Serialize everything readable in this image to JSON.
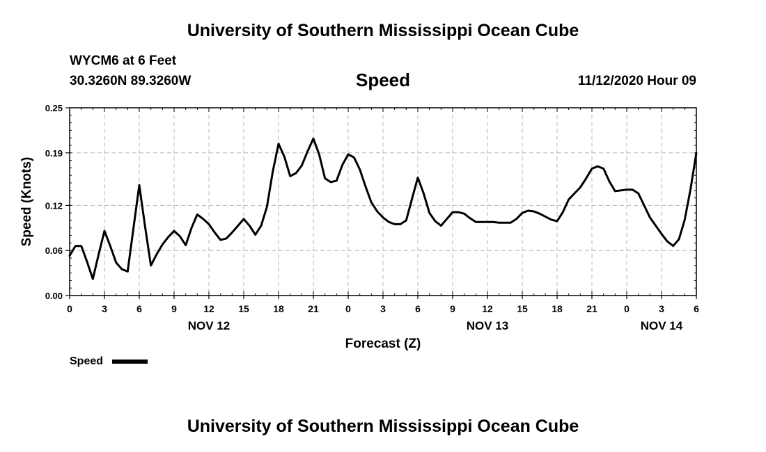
{
  "header": {
    "title": "University of Southern Mississippi Ocean Cube",
    "station": "WYCM6 at 6 Feet",
    "coordinates": "30.3260N 89.3260W",
    "datetime": "11/12/2020 Hour 09",
    "footer_title": "University of Southern Mississippi Ocean Cube"
  },
  "chart_data": {
    "type": "line",
    "title": "Speed",
    "xlabel": "Forecast (Z)",
    "ylabel": "Speed (Knots)",
    "ylim": [
      0.0,
      0.25
    ],
    "y_ticks": [
      "0.00",
      "0.06",
      "0.12",
      "0.19",
      "0.25"
    ],
    "x_ticks": [
      "0",
      "3",
      "6",
      "9",
      "12",
      "15",
      "18",
      "21",
      "0",
      "3",
      "6",
      "9",
      "12",
      "15",
      "18",
      "21",
      "0",
      "3",
      "6"
    ],
    "date_labels": [
      {
        "label": "NOV 12",
        "hour": 12
      },
      {
        "label": "NOV 13",
        "hour": 36
      },
      {
        "label": "NOV 14",
        "hour": 51
      }
    ],
    "grid": true,
    "line_color": "#000000",
    "legend": {
      "label": "Speed",
      "placement": "bottom-left"
    },
    "series": [
      {
        "name": "Speed",
        "x": [
          0,
          0.5,
          1,
          1.5,
          2,
          2.5,
          3,
          3.5,
          4,
          4.5,
          5,
          5.5,
          6,
          6.5,
          7,
          7.5,
          8,
          8.5,
          9,
          9.5,
          10,
          10.5,
          11,
          11.5,
          12,
          12.5,
          13,
          13.5,
          14,
          14.5,
          15,
          15.5,
          16,
          16.5,
          17,
          17.5,
          18,
          18.5,
          19,
          19.5,
          20,
          20.5,
          21,
          21.5,
          22,
          22.5,
          23,
          23.5,
          24,
          24.5,
          25,
          25.5,
          26,
          26.5,
          27,
          27.5,
          28,
          28.5,
          29,
          29.5,
          30,
          30.5,
          31,
          31.5,
          32,
          32.5,
          33,
          33.5,
          34,
          34.5,
          35,
          35.5,
          36,
          36.5,
          37,
          37.5,
          38,
          38.5,
          39,
          39.5,
          40,
          40.5,
          41,
          41.5,
          42,
          42.5,
          43,
          43.5,
          44,
          44.5,
          45,
          45.5,
          46,
          46.5,
          47,
          47.5,
          48,
          48.5,
          49,
          49.5,
          50,
          50.5,
          51,
          51.5,
          52,
          52.5,
          53,
          53.5,
          54
        ],
        "values": [
          0.053,
          0.066,
          0.066,
          0.045,
          0.022,
          0.055,
          0.086,
          0.066,
          0.044,
          0.035,
          0.032,
          0.09,
          0.147,
          0.092,
          0.04,
          0.055,
          0.068,
          0.078,
          0.086,
          0.079,
          0.067,
          0.09,
          0.108,
          0.102,
          0.095,
          0.084,
          0.074,
          0.076,
          0.084,
          0.093,
          0.102,
          0.093,
          0.081,
          0.093,
          0.118,
          0.165,
          0.202,
          0.185,
          0.159,
          0.163,
          0.173,
          0.192,
          0.209,
          0.188,
          0.156,
          0.151,
          0.153,
          0.174,
          0.188,
          0.184,
          0.168,
          0.145,
          0.124,
          0.112,
          0.104,
          0.098,
          0.095,
          0.095,
          0.1,
          0.129,
          0.157,
          0.136,
          0.11,
          0.099,
          0.093,
          0.102,
          0.111,
          0.111,
          0.109,
          0.103,
          0.098,
          0.098,
          0.098,
          0.098,
          0.097,
          0.097,
          0.097,
          0.102,
          0.11,
          0.113,
          0.112,
          0.109,
          0.105,
          0.101,
          0.099,
          0.111,
          0.128,
          0.136,
          0.144,
          0.156,
          0.169,
          0.172,
          0.169,
          0.152,
          0.139,
          0.14,
          0.141,
          0.141,
          0.136,
          0.12,
          0.104,
          0.093,
          0.082,
          0.072,
          0.066,
          0.075,
          0.101,
          0.142,
          0.19
        ]
      }
    ]
  }
}
